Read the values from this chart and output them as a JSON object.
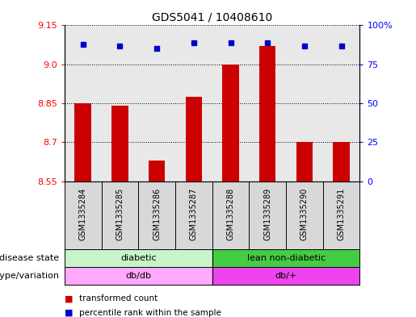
{
  "title": "GDS5041 / 10408610",
  "samples": [
    "GSM1335284",
    "GSM1335285",
    "GSM1335286",
    "GSM1335287",
    "GSM1335288",
    "GSM1335289",
    "GSM1335290",
    "GSM1335291"
  ],
  "bar_values": [
    8.85,
    8.84,
    8.63,
    8.875,
    9.0,
    9.07,
    8.7,
    8.7
  ],
  "percentile_values": [
    88,
    87,
    85,
    89,
    89,
    89,
    87,
    87
  ],
  "ylim_left": [
    8.55,
    9.15
  ],
  "ylim_right": [
    0,
    100
  ],
  "yticks_left": [
    8.55,
    8.7,
    8.85,
    9.0,
    9.15
  ],
  "ytick_labels_right": [
    "0",
    "25",
    "50",
    "75",
    "100%"
  ],
  "yticks_right": [
    0,
    25,
    50,
    75,
    100
  ],
  "bar_color": "#cc0000",
  "dot_color": "#0000cc",
  "disease_state_labels": [
    "diabetic",
    "lean non-diabetic"
  ],
  "disease_state_colors": [
    "#c8f5c8",
    "#44cc44"
  ],
  "genotype_labels": [
    "db/db",
    "db/+"
  ],
  "genotype_colors": [
    "#ffaaff",
    "#ee44ee"
  ],
  "legend_items": [
    "transformed count",
    "percentile rank within the sample"
  ],
  "legend_colors": [
    "#cc0000",
    "#0000cc"
  ],
  "row_labels": [
    "disease state",
    "genotype/variation"
  ],
  "bar_width": 0.45,
  "sample_bg": "#d8d8d8",
  "plot_bg": "#e8e8e8"
}
